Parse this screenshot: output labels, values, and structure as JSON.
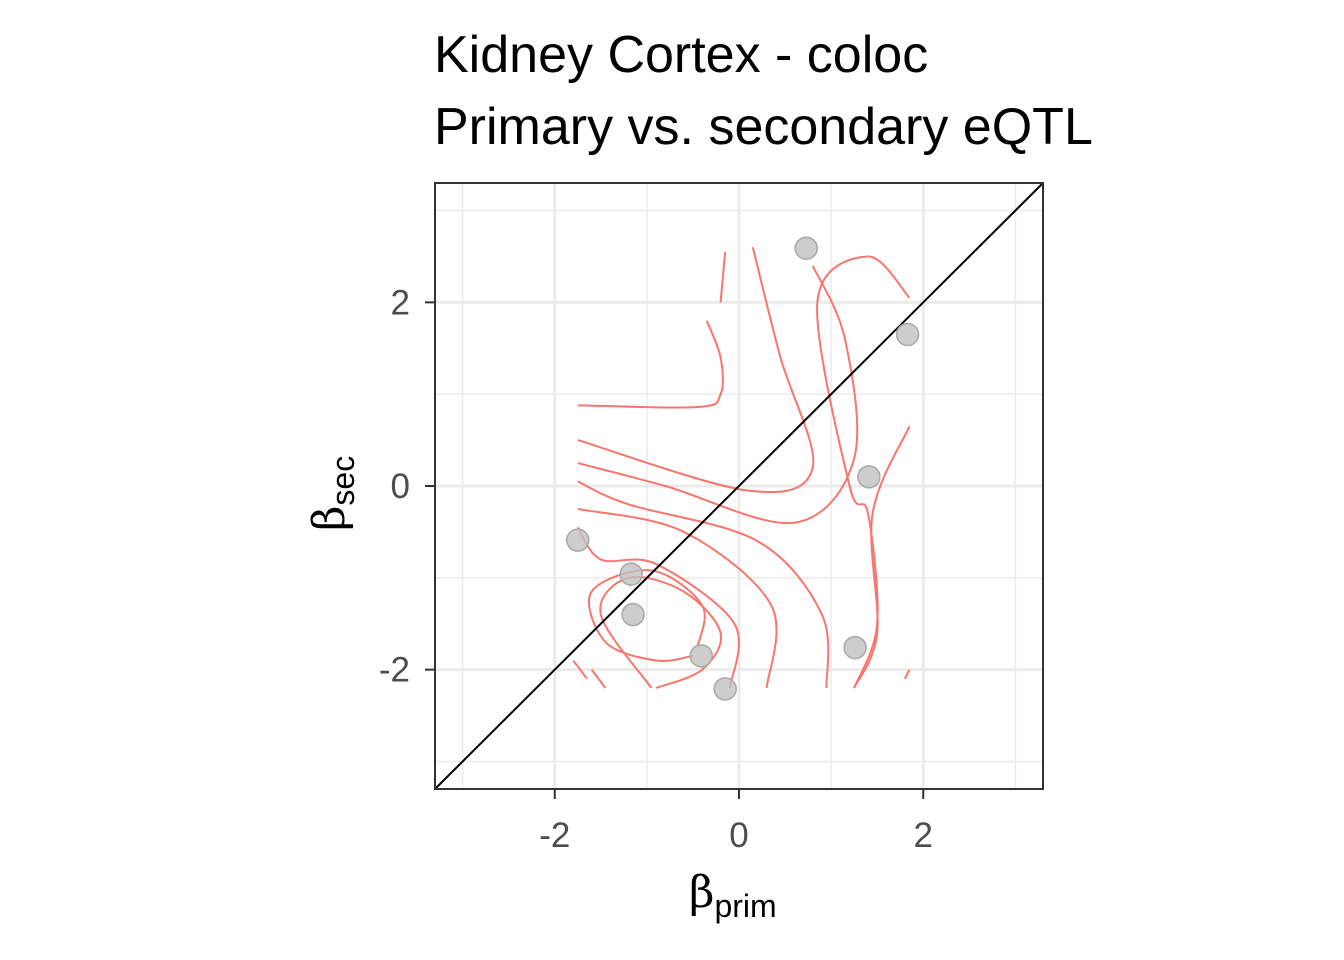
{
  "chart_data": {
    "type": "scatter",
    "title": [
      "Kidney Cortex - coloc",
      "Primary vs. secondary eQTL"
    ],
    "xlabel": {
      "symbol": "β",
      "subscript": "prim"
    },
    "ylabel": {
      "symbol": "β",
      "subscript": "sec"
    },
    "xlim": [
      -3.3,
      3.3
    ],
    "ylim": [
      -3.3,
      3.3
    ],
    "xticks": [
      -2,
      0,
      2
    ],
    "yticks": [
      -2,
      0,
      2
    ],
    "grid": true,
    "identity_line": true,
    "colors": {
      "points": "#c0c0c0",
      "contours": "#f8766d",
      "identity_line": "#000000",
      "grid": "#ebebeb",
      "panel_border": "#333333"
    },
    "points": [
      {
        "x": 0.73,
        "y": 2.59
      },
      {
        "x": 1.83,
        "y": 1.65
      },
      {
        "x": 1.41,
        "y": 0.1
      },
      {
        "x": -1.75,
        "y": -0.59
      },
      {
        "x": -1.17,
        "y": -0.96
      },
      {
        "x": -1.15,
        "y": -1.4
      },
      {
        "x": 1.26,
        "y": -1.76
      },
      {
        "x": -0.41,
        "y": -1.85
      },
      {
        "x": -0.15,
        "y": -2.21
      }
    ],
    "contours": [
      [
        [
          -0.35,
          1.8
        ],
        [
          -0.2,
          1.4
        ],
        [
          -0.2,
          1.0
        ],
        [
          -0.45,
          0.86
        ],
        [
          -1.75,
          0.88
        ]
      ],
      [
        [
          0.15,
          2.6
        ],
        [
          0.45,
          1.4
        ],
        [
          0.8,
          0.2
        ],
        [
          0.1,
          -0.05
        ],
        [
          -1.75,
          0.5
        ]
      ],
      [
        [
          0.8,
          2.4
        ],
        [
          1.15,
          1.6
        ],
        [
          1.25,
          0.3
        ],
        [
          0.6,
          -0.4
        ],
        [
          -0.8,
          0.0
        ],
        [
          -1.75,
          0.25
        ]
      ],
      [
        [
          1.85,
          2.05
        ],
        [
          1.4,
          2.5
        ],
        [
          0.85,
          2.0
        ],
        [
          1.2,
          0.0
        ],
        [
          1.4,
          -0.3
        ],
        [
          1.5,
          -1.5
        ],
        [
          1.25,
          -2.2
        ]
      ],
      [
        [
          1.85,
          0.65
        ],
        [
          1.45,
          -0.3
        ],
        [
          1.5,
          -1.6
        ],
        [
          1.25,
          -2.2
        ]
      ],
      [
        [
          -0.15,
          2.55
        ],
        [
          -0.2,
          2.0
        ]
      ],
      [
        [
          0.95,
          -2.2
        ],
        [
          0.9,
          -1.4
        ],
        [
          0.2,
          -0.6
        ],
        [
          -1.2,
          -0.2
        ],
        [
          -1.75,
          0.05
        ]
      ],
      [
        [
          0.3,
          -2.2
        ],
        [
          0.35,
          -1.3
        ],
        [
          -0.6,
          -0.5
        ],
        [
          -1.75,
          -0.25
        ]
      ],
      [
        [
          -0.1,
          -2.2
        ],
        [
          -0.05,
          -1.5
        ],
        [
          -0.9,
          -0.85
        ],
        [
          -1.5,
          -0.8
        ],
        [
          -1.75,
          -0.45
        ]
      ],
      [
        [
          -0.45,
          -1.75
        ],
        [
          -0.4,
          -1.3
        ],
        [
          -0.95,
          -0.92
        ],
        [
          -1.6,
          -1.15
        ],
        [
          -1.45,
          -1.7
        ],
        [
          -0.9,
          -1.9
        ],
        [
          -0.5,
          -1.85
        ]
      ],
      [
        [
          -0.95,
          -2.2
        ],
        [
          -1.5,
          -1.4
        ],
        [
          -1.2,
          -1.0
        ],
        [
          -0.6,
          -1.15
        ],
        [
          -0.2,
          -1.6
        ],
        [
          -0.4,
          -2.0
        ],
        [
          -0.9,
          -2.2
        ]
      ],
      [
        [
          -1.65,
          -2.1
        ],
        [
          -1.8,
          -1.9
        ]
      ],
      [
        [
          -1.45,
          -2.2
        ],
        [
          -1.6,
          -2.0
        ]
      ],
      [
        [
          1.8,
          -2.1
        ],
        [
          1.85,
          -2.0
        ]
      ]
    ]
  }
}
